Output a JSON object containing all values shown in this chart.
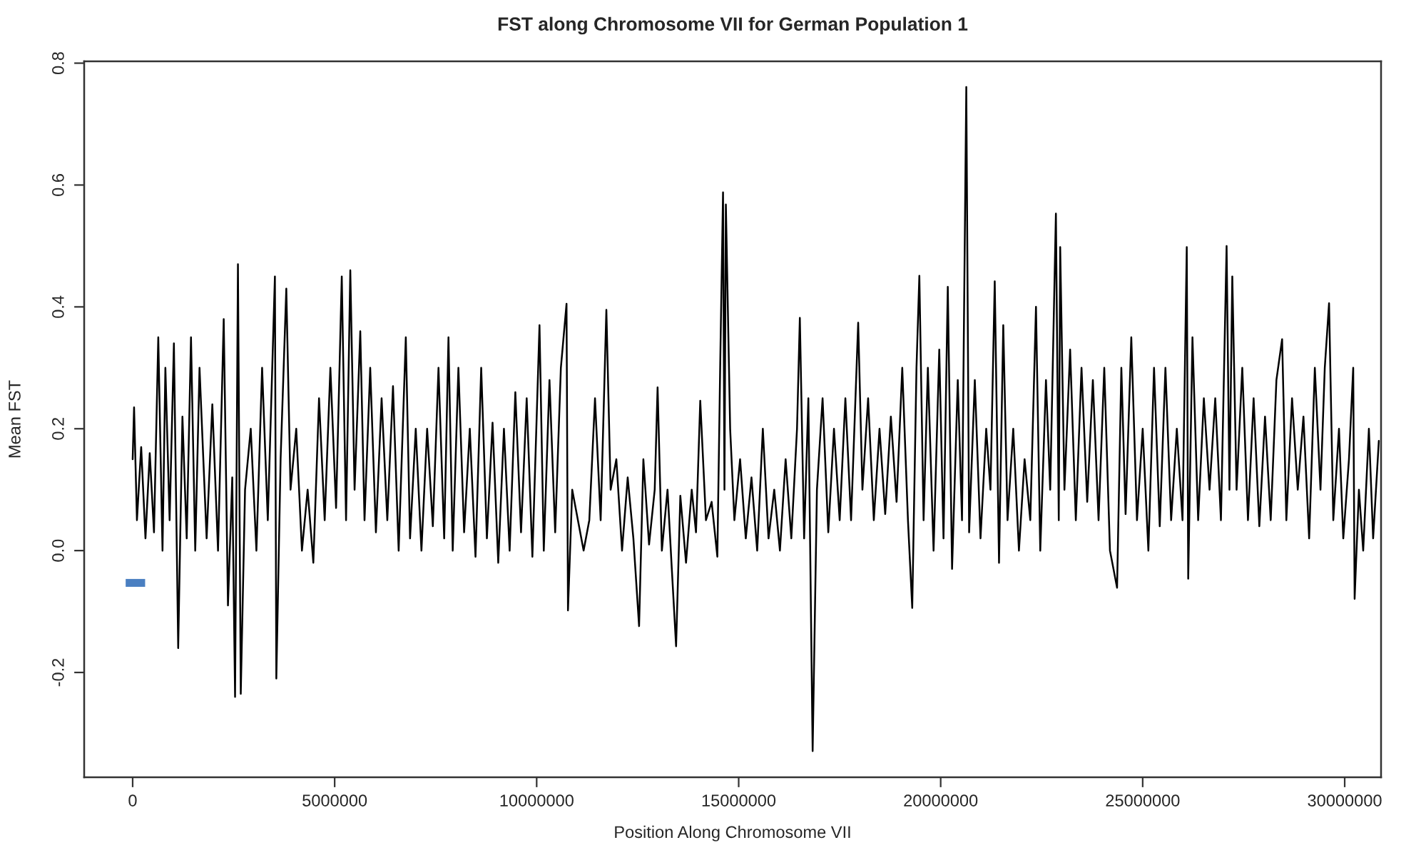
{
  "chart_data": {
    "type": "line",
    "title": "FST along Chromosome VII for German Population 1",
    "xlabel": "Position Along Chromosome VII",
    "ylabel": "Mean FST",
    "xlim": [
      -1200000,
      30900000
    ],
    "xticks": [
      0,
      5000000,
      10000000,
      15000000,
      20000000,
      25000000,
      30000000
    ],
    "ylim": [
      -0.372,
      0.803
    ],
    "yticks": [
      -0.2,
      {
        "value": 0,
        "label": "0.0"
      },
      0.2,
      0.4,
      0.6,
      0.8
    ],
    "grid": false,
    "legend": false,
    "marker": "none",
    "line_style": "solid",
    "series": [
      {
        "color": "#000000",
        "x": [
          0,
          35000,
          106000,
          211000,
          317000,
          423000,
          528000,
          634000,
          739000,
          810000,
          915000,
          1021000,
          1127000,
          1232000,
          1338000,
          1444000,
          1549000,
          1655000,
          1831000,
          1972000,
          2113000,
          2254000,
          2359000,
          2465000,
          2535000,
          2606000,
          2676000,
          2782000,
          2923000,
          3063000,
          3204000,
          3345000,
          3521000,
          3556000,
          3662000,
          3803000,
          3908000,
          4049000,
          4190000,
          4331000,
          4472000,
          4613000,
          4753000,
          4894000,
          5035000,
          5176000,
          5282000,
          5387000,
          5493000,
          5634000,
          5739000,
          5880000,
          6021000,
          6162000,
          6303000,
          6444000,
          6584000,
          6761000,
          6866000,
          7007000,
          7148000,
          7289000,
          7430000,
          7570000,
          7711000,
          7817000,
          7922000,
          8063000,
          8204000,
          8345000,
          8486000,
          8627000,
          8768000,
          8908000,
          9049000,
          9190000,
          9331000,
          9472000,
          9613000,
          9753000,
          9894000,
          10070000,
          10176000,
          10317000,
          10458000,
          10599000,
          10739000,
          10775000,
          10880000,
          11021000,
          11162000,
          11303000,
          11444000,
          11584000,
          11725000,
          11831000,
          11972000,
          12113000,
          12253000,
          12394000,
          12535000,
          12641000,
          12782000,
          12922000,
          12993000,
          13099000,
          13239000,
          13345000,
          13451000,
          13556000,
          13697000,
          13838000,
          13944000,
          14049000,
          14190000,
          14331000,
          14472000,
          14542000,
          14613000,
          14648000,
          14683000,
          14789000,
          14894000,
          15035000,
          15176000,
          15317000,
          15458000,
          15598000,
          15739000,
          15880000,
          16021000,
          16162000,
          16303000,
          16444000,
          16514000,
          16620000,
          16725000,
          16831000,
          16937000,
          17077000,
          17218000,
          17359000,
          17500000,
          17641000,
          17782000,
          17958000,
          18063000,
          18204000,
          18345000,
          18486000,
          18627000,
          18767000,
          18908000,
          19049000,
          19190000,
          19296000,
          19401000,
          19472000,
          19577000,
          19683000,
          19824000,
          19965000,
          20070000,
          20176000,
          20282000,
          20423000,
          20528000,
          20634000,
          20704000,
          20845000,
          20986000,
          21127000,
          21232000,
          21338000,
          21444000,
          21549000,
          21655000,
          21796000,
          21937000,
          22077000,
          22218000,
          22359000,
          22465000,
          22606000,
          22711000,
          22852000,
          22923000,
          22958000,
          23063000,
          23204000,
          23345000,
          23486000,
          23627000,
          23767000,
          23908000,
          24049000,
          24190000,
          24366000,
          24472000,
          24577000,
          24718000,
          24859000,
          25000000,
          25141000,
          25281000,
          25422000,
          25563000,
          25704000,
          25845000,
          25986000,
          26091000,
          26127000,
          26232000,
          26373000,
          26514000,
          26655000,
          26796000,
          26937000,
          27077000,
          27148000,
          27218000,
          27324000,
          27465000,
          27606000,
          27746000,
          27887000,
          28028000,
          28169000,
          28310000,
          28451000,
          28556000,
          28697000,
          28838000,
          28979000,
          29120000,
          29261000,
          29401000,
          29507000,
          29613000,
          29718000,
          29859000,
          29965000,
          30106000,
          30211000,
          30246000,
          30352000,
          30458000,
          30599000,
          30704000,
          30845000
        ],
        "values": [
          0.15,
          0.235,
          0.05,
          0.17,
          0.02,
          0.16,
          0.03,
          0.35,
          0.0,
          0.3,
          0.05,
          0.34,
          -0.16,
          0.22,
          0.02,
          0.35,
          0.0,
          0.3,
          0.02,
          0.24,
          0.0,
          0.38,
          -0.09,
          0.12,
          -0.24,
          0.47,
          -0.235,
          0.1,
          0.2,
          0.0,
          0.3,
          0.05,
          0.45,
          -0.21,
          0.15,
          0.43,
          0.1,
          0.2,
          0.0,
          0.1,
          -0.02,
          0.25,
          0.05,
          0.3,
          0.07,
          0.45,
          0.05,
          0.46,
          0.1,
          0.36,
          0.05,
          0.3,
          0.03,
          0.25,
          0.05,
          0.27,
          0.0,
          0.35,
          0.02,
          0.2,
          0.0,
          0.2,
          0.04,
          0.3,
          0.02,
          0.35,
          0.0,
          0.3,
          0.03,
          0.2,
          -0.01,
          0.3,
          0.02,
          0.21,
          -0.02,
          0.2,
          0.0,
          0.26,
          0.03,
          0.25,
          -0.01,
          0.37,
          0.0,
          0.28,
          0.03,
          0.3,
          0.405,
          -0.098,
          0.1,
          0.05,
          0.0,
          0.05,
          0.25,
          0.05,
          0.395,
          0.1,
          0.15,
          0.0,
          0.12,
          0.02,
          -0.124,
          0.15,
          0.01,
          0.1,
          0.268,
          0.0,
          0.1,
          -0.03,
          -0.157,
          0.09,
          -0.02,
          0.1,
          0.03,
          0.246,
          0.05,
          0.08,
          -0.01,
          0.3,
          0.588,
          0.1,
          0.568,
          0.2,
          0.05,
          0.15,
          0.02,
          0.12,
          0.0,
          0.2,
          0.02,
          0.1,
          0.0,
          0.15,
          0.02,
          0.2,
          0.382,
          0.02,
          0.25,
          -0.329,
          0.1,
          0.25,
          0.03,
          0.2,
          0.05,
          0.25,
          0.05,
          0.374,
          0.1,
          0.25,
          0.05,
          0.2,
          0.06,
          0.22,
          0.08,
          0.3,
          0.05,
          -0.094,
          0.3,
          0.451,
          0.05,
          0.3,
          0.0,
          0.33,
          0.02,
          0.433,
          -0.03,
          0.28,
          0.05,
          0.761,
          0.03,
          0.28,
          0.02,
          0.2,
          0.1,
          0.442,
          -0.02,
          0.37,
          0.05,
          0.2,
          0.0,
          0.15,
          0.05,
          0.4,
          0.0,
          0.28,
          0.1,
          0.553,
          0.05,
          0.498,
          0.1,
          0.33,
          0.05,
          0.3,
          0.08,
          0.28,
          0.05,
          0.3,
          0.0,
          -0.061,
          0.3,
          0.06,
          0.35,
          0.05,
          0.2,
          0.0,
          0.3,
          0.04,
          0.3,
          0.05,
          0.2,
          0.05,
          0.498,
          -0.046,
          0.35,
          0.05,
          0.25,
          0.1,
          0.25,
          0.05,
          0.5,
          0.1,
          0.45,
          0.1,
          0.3,
          0.05,
          0.25,
          0.04,
          0.22,
          0.05,
          0.28,
          0.347,
          0.05,
          0.25,
          0.1,
          0.22,
          0.02,
          0.3,
          0.1,
          0.3,
          0.406,
          0.05,
          0.2,
          0.02,
          0.15,
          0.3,
          -0.079,
          0.1,
          0.0,
          0.2,
          0.02,
          0.18
        ]
      }
    ]
  }
}
